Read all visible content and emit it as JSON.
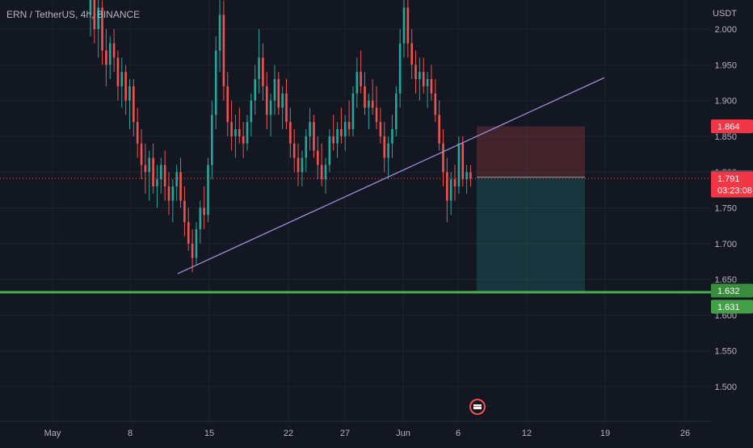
{
  "symbol_label": "ERN / TetherUS, 4h, BINANCE",
  "currency_label": "USDT",
  "colors": {
    "background": "#131722",
    "grid": "#1e222d",
    "text": "#b2b5be",
    "candle_up": "#26a69a",
    "candle_down": "#ef5350",
    "trendline": "#9b8ad8",
    "support_line": "#4caf50",
    "stop_zone": "#ef5350",
    "target_zone": "#26a69a"
  },
  "chart_data": {
    "type": "candlestick",
    "y_axis": {
      "ticks": [
        "1.500",
        "1.550",
        "1.600",
        "1.650",
        "1.700",
        "1.750",
        "1.800",
        "1.850",
        "1.900",
        "1.950",
        "2.000"
      ],
      "range": [
        1.47,
        2.05
      ]
    },
    "x_axis": {
      "labels": [
        "May",
        "8",
        "15",
        "22",
        "27",
        "Jun",
        "6",
        "12",
        "19",
        "26"
      ]
    },
    "price_tags": [
      {
        "value": "1.864",
        "style": "stop"
      },
      {
        "value": "1.793",
        "style": "entry"
      },
      {
        "value": "1.791",
        "style": "current",
        "countdown": "03:23:08"
      },
      {
        "value": "1.632",
        "style": "support"
      },
      {
        "value": "1.631",
        "style": "target"
      }
    ],
    "current_price": 1.791,
    "entry_price": 1.793,
    "stop_price": 1.864,
    "target_price": 1.631,
    "support_level": 1.632,
    "trendline": {
      "start_price": 1.658,
      "end_price": 1.932
    },
    "candles_ohlc": [
      [
        2.02,
        2.09,
        1.99,
        2.05
      ],
      [
        2.05,
        2.06,
        1.98,
        2.0
      ],
      [
        2.0,
        2.05,
        1.96,
        2.03
      ],
      [
        2.03,
        2.04,
        1.95,
        1.97
      ],
      [
        1.97,
        2.0,
        1.92,
        1.95
      ],
      [
        1.95,
        1.99,
        1.93,
        1.98
      ],
      [
        1.98,
        2.0,
        1.94,
        1.96
      ],
      [
        1.96,
        1.97,
        1.9,
        1.92
      ],
      [
        1.92,
        1.96,
        1.89,
        1.94
      ],
      [
        1.94,
        1.95,
        1.88,
        1.9
      ],
      [
        1.9,
        1.93,
        1.86,
        1.92
      ],
      [
        1.92,
        1.93,
        1.85,
        1.87
      ],
      [
        1.87,
        1.89,
        1.82,
        1.84
      ],
      [
        1.84,
        1.86,
        1.79,
        1.81
      ],
      [
        1.81,
        1.84,
        1.77,
        1.8
      ],
      [
        1.8,
        1.83,
        1.76,
        1.82
      ],
      [
        1.82,
        1.84,
        1.77,
        1.78
      ],
      [
        1.78,
        1.81,
        1.75,
        1.79
      ],
      [
        1.79,
        1.82,
        1.77,
        1.81
      ],
      [
        1.81,
        1.83,
        1.76,
        1.78
      ],
      [
        1.78,
        1.8,
        1.74,
        1.76
      ],
      [
        1.76,
        1.79,
        1.73,
        1.78
      ],
      [
        1.78,
        1.81,
        1.76,
        1.8
      ],
      [
        1.8,
        1.82,
        1.75,
        1.76
      ],
      [
        1.76,
        1.78,
        1.71,
        1.73
      ],
      [
        1.73,
        1.75,
        1.69,
        1.7
      ],
      [
        1.7,
        1.72,
        1.66,
        1.68
      ],
      [
        1.68,
        1.73,
        1.67,
        1.72
      ],
      [
        1.72,
        1.76,
        1.7,
        1.75
      ],
      [
        1.75,
        1.78,
        1.72,
        1.74
      ],
      [
        1.74,
        1.82,
        1.73,
        1.81
      ],
      [
        1.81,
        1.9,
        1.79,
        1.88
      ],
      [
        1.88,
        1.99,
        1.86,
        1.97
      ],
      [
        1.97,
        2.06,
        1.94,
        2.02
      ],
      [
        2.02,
        2.04,
        1.9,
        1.92
      ],
      [
        1.92,
        1.94,
        1.85,
        1.87
      ],
      [
        1.87,
        1.9,
        1.83,
        1.85
      ],
      [
        1.85,
        1.88,
        1.82,
        1.86
      ],
      [
        1.86,
        1.89,
        1.84,
        1.85
      ],
      [
        1.85,
        1.87,
        1.82,
        1.84
      ],
      [
        1.84,
        1.88,
        1.83,
        1.87
      ],
      [
        1.87,
        1.91,
        1.85,
        1.9
      ],
      [
        1.9,
        1.95,
        1.88,
        1.93
      ],
      [
        1.93,
        2.0,
        1.91,
        1.96
      ],
      [
        1.96,
        1.98,
        1.9,
        1.92
      ],
      [
        1.92,
        1.94,
        1.86,
        1.88
      ],
      [
        1.88,
        1.91,
        1.85,
        1.9
      ],
      [
        1.9,
        1.95,
        1.88,
        1.93
      ],
      [
        1.93,
        1.94,
        1.88,
        1.89
      ],
      [
        1.89,
        1.92,
        1.86,
        1.91
      ],
      [
        1.91,
        1.93,
        1.86,
        1.87
      ],
      [
        1.87,
        1.89,
        1.82,
        1.84
      ],
      [
        1.84,
        1.86,
        1.8,
        1.82
      ],
      [
        1.82,
        1.84,
        1.78,
        1.8
      ],
      [
        1.8,
        1.83,
        1.78,
        1.82
      ],
      [
        1.82,
        1.86,
        1.8,
        1.85
      ],
      [
        1.85,
        1.89,
        1.83,
        1.87
      ],
      [
        1.87,
        1.88,
        1.82,
        1.83
      ],
      [
        1.83,
        1.85,
        1.79,
        1.81
      ],
      [
        1.81,
        1.84,
        1.78,
        1.79
      ],
      [
        1.79,
        1.82,
        1.77,
        1.81
      ],
      [
        1.81,
        1.86,
        1.8,
        1.85
      ],
      [
        1.85,
        1.88,
        1.83,
        1.84
      ],
      [
        1.84,
        1.87,
        1.82,
        1.86
      ],
      [
        1.86,
        1.89,
        1.84,
        1.85
      ],
      [
        1.85,
        1.88,
        1.83,
        1.87
      ],
      [
        1.87,
        1.9,
        1.85,
        1.86
      ],
      [
        1.86,
        1.92,
        1.85,
        1.91
      ],
      [
        1.91,
        1.96,
        1.89,
        1.94
      ],
      [
        1.94,
        1.97,
        1.91,
        1.92
      ],
      [
        1.92,
        1.94,
        1.88,
        1.89
      ],
      [
        1.89,
        1.91,
        1.86,
        1.9
      ],
      [
        1.9,
        1.93,
        1.88,
        1.89
      ],
      [
        1.89,
        1.92,
        1.86,
        1.87
      ],
      [
        1.87,
        1.89,
        1.84,
        1.85
      ],
      [
        1.85,
        1.87,
        1.8,
        1.82
      ],
      [
        1.82,
        1.85,
        1.79,
        1.84
      ],
      [
        1.84,
        1.88,
        1.82,
        1.86
      ],
      [
        1.86,
        1.92,
        1.85,
        1.91
      ],
      [
        1.91,
        2.0,
        1.89,
        1.98
      ],
      [
        1.98,
        2.08,
        1.96,
        2.03
      ],
      [
        2.03,
        2.05,
        1.96,
        1.98
      ],
      [
        1.98,
        2.0,
        1.93,
        1.95
      ],
      [
        1.95,
        1.97,
        1.91,
        1.93
      ],
      [
        1.93,
        1.96,
        1.9,
        1.94
      ],
      [
        1.94,
        1.96,
        1.91,
        1.92
      ],
      [
        1.92,
        1.94,
        1.89,
        1.93
      ],
      [
        1.93,
        1.95,
        1.9,
        1.91
      ],
      [
        1.91,
        1.93,
        1.87,
        1.88
      ],
      [
        1.88,
        1.9,
        1.83,
        1.84
      ],
      [
        1.84,
        1.86,
        1.78,
        1.8
      ],
      [
        1.8,
        1.82,
        1.73,
        1.76
      ],
      [
        1.76,
        1.8,
        1.74,
        1.79
      ],
      [
        1.79,
        1.81,
        1.76,
        1.78
      ],
      [
        1.78,
        1.85,
        1.77,
        1.84
      ],
      [
        1.84,
        1.85,
        1.78,
        1.79
      ],
      [
        1.79,
        1.81,
        1.77,
        1.8
      ],
      [
        1.8,
        1.81,
        1.78,
        1.791
      ]
    ]
  }
}
